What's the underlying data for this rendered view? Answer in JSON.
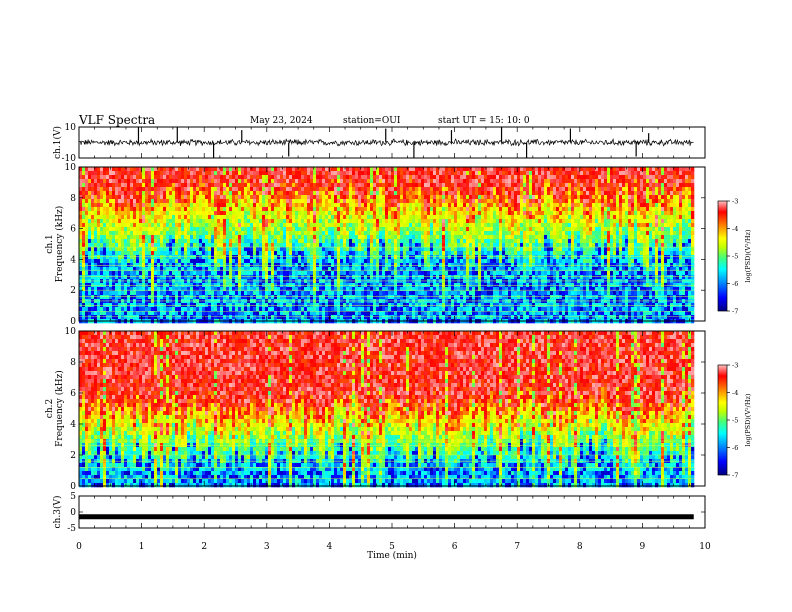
{
  "header": {
    "title": "VLF Spectra",
    "date": "May 23, 2024",
    "station": "station=OUI",
    "start": "start  UT  =   15: 10: 0"
  },
  "chart_data": {
    "type": "heatmap",
    "panels": [
      {
        "name": "ch1-waveform",
        "type": "line",
        "ylabel": "ch.1(V)",
        "ylim": [
          -10,
          10
        ],
        "yticks": [
          "10",
          "-10"
        ],
        "baseline": 0,
        "noise_amplitude": 3,
        "spikes": [
          {
            "t": 0.95,
            "v": 10
          },
          {
            "t": 1.57,
            "v": 10
          },
          {
            "t": 2.15,
            "v": -10
          },
          {
            "t": 2.6,
            "v": 8
          },
          {
            "t": 3.35,
            "v": -9
          },
          {
            "t": 4.9,
            "v": 9
          },
          {
            "t": 5.35,
            "v": -10
          },
          {
            "t": 5.95,
            "v": 8
          },
          {
            "t": 6.75,
            "v": 10
          },
          {
            "t": 7.15,
            "v": -10
          },
          {
            "t": 7.85,
            "v": 9
          },
          {
            "t": 8.9,
            "v": -9
          },
          {
            "t": 9.1,
            "v": 6
          }
        ]
      },
      {
        "name": "ch1-spectrogram",
        "type": "heatmap",
        "ylabel": "ch.1 Frequency (kHz)",
        "ylim": [
          0,
          10
        ],
        "yticks": [
          "0",
          "2",
          "4",
          "6",
          "8",
          "10"
        ],
        "colorbar_label": "log(PSD)(V²/Hz)",
        "colorbar_range": [
          -7,
          -3
        ],
        "colorbar_ticks": [
          "-3",
          "-4",
          "-5",
          "-6",
          "-7"
        ],
        "level_low_khz": 4.5,
        "level_high_khz": 8.5,
        "lines_khz": [
          0.3,
          0.6,
          1.0,
          1.3,
          1.6,
          2.0,
          2.3,
          2.6,
          2.9,
          3.3,
          3.6,
          4.2,
          4.8
        ]
      },
      {
        "name": "ch2-spectrogram",
        "type": "heatmap",
        "ylabel": "ch.2 Frequency (kHz)",
        "ylim": [
          0,
          10
        ],
        "yticks": [
          "0",
          "2",
          "4",
          "6",
          "8",
          "10"
        ],
        "colorbar_label": "log(PSD)(V²/Hz)",
        "colorbar_range": [
          -7,
          -3
        ],
        "colorbar_ticks": [
          "-3",
          "-4",
          "-5",
          "-6",
          "-7"
        ],
        "level_low_khz": 2.0,
        "level_high_khz": 5.5,
        "lines_khz": [
          0.5,
          1.2,
          1.6,
          2.0,
          2.6,
          2.9
        ]
      },
      {
        "name": "ch3-signal",
        "type": "line",
        "ylabel": "ch.3(V)",
        "ylim": [
          -5,
          5
        ],
        "yticks": [
          "5",
          "0",
          "-5"
        ],
        "constant_value": -1.5
      }
    ],
    "x": {
      "label": "Time  (min)",
      "lim": [
        0,
        10
      ],
      "data_end": 9.82,
      "ticks": [
        "0",
        "1",
        "2",
        "3",
        "4",
        "5",
        "6",
        "7",
        "8",
        "9",
        "10"
      ]
    },
    "colors": {
      "colormap": [
        "#00007f",
        "#0000ff",
        "#00a0ff",
        "#00ffff",
        "#40ff80",
        "#c0ff00",
        "#ffff00",
        "#ff8000",
        "#ff0000",
        "#ffb0b0"
      ],
      "line": "#000000"
    }
  }
}
